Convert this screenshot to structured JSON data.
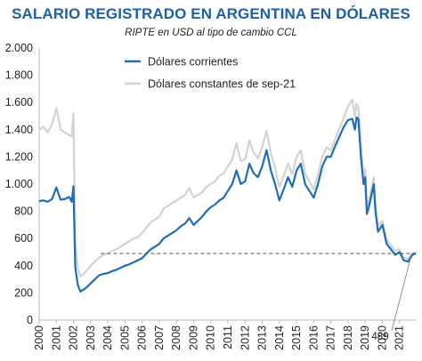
{
  "title": "SALARIO REGISTRADO EN ARGENTINA EN DÓLARES",
  "subtitle": "RIPTE en USD al tipo de cambio CCL",
  "colors": {
    "corrientes": "#1f6db5",
    "constantes": "#d3d3d3",
    "title": "#1f5fa5",
    "reference": "#555555"
  },
  "chart_data": {
    "type": "line",
    "title": "SALARIO REGISTRADO EN ARGENTINA EN DÓLARES",
    "subtitle": "RIPTE en USD al tipo de cambio CCL",
    "xlabel": "",
    "ylabel": "",
    "xlim": [
      2000.0,
      2022.0
    ],
    "ylim": [
      0,
      2000
    ],
    "yticks": [
      0,
      200,
      400,
      600,
      800,
      1000,
      1200,
      1400,
      1600,
      1800,
      2000
    ],
    "ytick_labels": [
      "0",
      "200",
      "400",
      "600",
      "800",
      "1.000",
      "1.200",
      "1.400",
      "1.600",
      "1.800",
      "2.000"
    ],
    "xticks": [
      2000,
      2001,
      2002,
      2003,
      2004,
      2005,
      2006,
      2007,
      2008,
      2009,
      2010,
      2011,
      2012,
      2013,
      2014,
      2015,
      2016,
      2017,
      2018,
      2019,
      2020,
      2021
    ],
    "xtick_labels": [
      "2000",
      "2001",
      "2002",
      "2003",
      "2004",
      "2005",
      "2006",
      "2007",
      "2008",
      "2009",
      "2010",
      "2011",
      "2012",
      "2013",
      "2014",
      "2015",
      "2016",
      "2017",
      "2018",
      "2019",
      "2020",
      "2021"
    ],
    "grid": false,
    "legend_position": "top-center",
    "reference_line": {
      "value": 489,
      "label": "489",
      "style": "dashed"
    },
    "series": [
      {
        "name": "Dólares corrientes",
        "color": "#1f6db5",
        "x": [
          2000.0,
          2000.25,
          2000.5,
          2000.75,
          2001.0,
          2001.25,
          2001.5,
          2001.75,
          2001.9,
          2002.0,
          2002.1,
          2002.25,
          2002.4,
          2002.6,
          2002.8,
          2003.0,
          2003.25,
          2003.5,
          2003.75,
          2004.0,
          2004.25,
          2004.5,
          2004.75,
          2005.0,
          2005.25,
          2005.5,
          2005.75,
          2006.0,
          2006.25,
          2006.5,
          2006.75,
          2007.0,
          2007.25,
          2007.5,
          2007.75,
          2008.0,
          2008.25,
          2008.5,
          2008.75,
          2009.0,
          2009.25,
          2009.5,
          2009.75,
          2010.0,
          2010.25,
          2010.5,
          2010.75,
          2011.0,
          2011.25,
          2011.5,
          2011.75,
          2012.0,
          2012.25,
          2012.5,
          2012.75,
          2013.0,
          2013.25,
          2013.5,
          2013.75,
          2014.0,
          2014.25,
          2014.5,
          2014.75,
          2015.0,
          2015.25,
          2015.5,
          2015.75,
          2016.0,
          2016.25,
          2016.5,
          2016.75,
          2017.0,
          2017.25,
          2017.5,
          2017.75,
          2018.0,
          2018.25,
          2018.4,
          2018.5,
          2018.6,
          2018.75,
          2018.9,
          2019.0,
          2019.1,
          2019.25,
          2019.5,
          2019.6,
          2019.75,
          2020.0,
          2020.25,
          2020.5,
          2020.75,
          2021.0,
          2021.25,
          2021.5,
          2021.75,
          2021.95
        ],
        "y": [
          875,
          880,
          870,
          890,
          975,
          885,
          890,
          905,
          870,
          985,
          390,
          260,
          210,
          225,
          245,
          270,
          300,
          330,
          340,
          345,
          360,
          370,
          385,
          400,
          410,
          425,
          440,
          455,
          490,
          520,
          540,
          560,
          600,
          620,
          640,
          660,
          690,
          710,
          750,
          700,
          730,
          760,
          800,
          830,
          850,
          880,
          900,
          950,
          1000,
          1100,
          1000,
          1020,
          1150,
          1080,
          1050,
          1130,
          1250,
          1100,
          1000,
          880,
          960,
          1050,
          980,
          1100,
          1150,
          1000,
          950,
          900,
          1000,
          1130,
          1200,
          1200,
          1280,
          1350,
          1420,
          1470,
          1480,
          1400,
          1490,
          1480,
          1200,
          1000,
          1050,
          780,
          850,
          1000,
          800,
          650,
          700,
          560,
          520,
          480,
          500,
          440,
          430,
          480,
          490
        ]
      },
      {
        "name": "Dólares constantes de sep-21",
        "color": "#d3d3d3",
        "x": [
          2000.0,
          2000.25,
          2000.5,
          2000.75,
          2001.0,
          2001.25,
          2001.5,
          2001.75,
          2001.9,
          2002.0,
          2002.1,
          2002.25,
          2002.4,
          2002.6,
          2002.8,
          2003.0,
          2003.25,
          2003.5,
          2003.75,
          2004.0,
          2004.25,
          2004.5,
          2004.75,
          2005.0,
          2005.25,
          2005.5,
          2005.75,
          2006.0,
          2006.25,
          2006.5,
          2006.75,
          2007.0,
          2007.25,
          2007.5,
          2007.75,
          2008.0,
          2008.25,
          2008.5,
          2008.75,
          2009.0,
          2009.25,
          2009.5,
          2009.75,
          2010.0,
          2010.25,
          2010.5,
          2010.75,
          2011.0,
          2011.25,
          2011.5,
          2011.75,
          2012.0,
          2012.25,
          2012.5,
          2012.75,
          2013.0,
          2013.25,
          2013.5,
          2013.75,
          2014.0,
          2014.25,
          2014.5,
          2014.75,
          2015.0,
          2015.25,
          2015.5,
          2015.75,
          2016.0,
          2016.25,
          2016.5,
          2016.75,
          2017.0,
          2017.25,
          2017.5,
          2017.75,
          2018.0,
          2018.25,
          2018.4,
          2018.5,
          2018.6,
          2018.75,
          2018.9,
          2019.0,
          2019.1,
          2019.25,
          2019.5,
          2019.6,
          2019.75,
          2020.0,
          2020.25,
          2020.5,
          2020.75,
          2021.0,
          2021.25,
          2021.5,
          2021.75,
          2021.95
        ],
        "y": [
          1400,
          1420,
          1380,
          1440,
          1560,
          1400,
          1380,
          1360,
          1350,
          1520,
          560,
          380,
          320,
          340,
          370,
          400,
          430,
          460,
          480,
          490,
          510,
          520,
          540,
          560,
          580,
          600,
          610,
          640,
          680,
          720,
          740,
          760,
          820,
          840,
          860,
          880,
          900,
          920,
          970,
          900,
          920,
          940,
          980,
          1000,
          1020,
          1060,
          1080,
          1130,
          1180,
          1300,
          1170,
          1180,
          1320,
          1230,
          1190,
          1270,
          1390,
          1230,
          1120,
          980,
          1060,
          1150,
          1070,
          1200,
          1250,
          1080,
          1020,
          960,
          1070,
          1200,
          1270,
          1250,
          1330,
          1410,
          1490,
          1570,
          1620,
          1500,
          1590,
          1560,
          1280,
          1060,
          1110,
          830,
          900,
          1050,
          850,
          690,
          730,
          590,
          550,
          510,
          520,
          460,
          450,
          495,
          500
        ]
      }
    ]
  }
}
